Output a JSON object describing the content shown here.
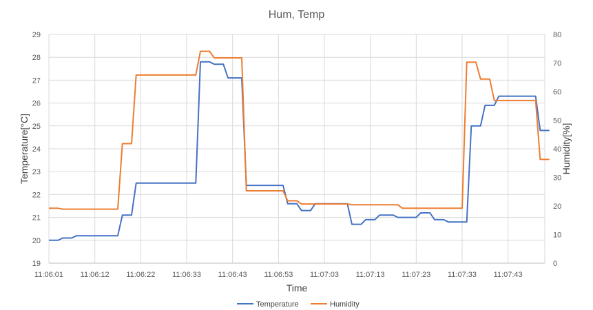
{
  "chart_data": {
    "type": "line",
    "title": "Hum, Temp",
    "xlabel": "Time",
    "ylabel_left": "Temperature[°C]",
    "ylabel_right": "Humidity[%]",
    "ylim_left": [
      19,
      29
    ],
    "ylim_right": [
      0,
      80
    ],
    "yticks_left": [
      19,
      20,
      21,
      22,
      23,
      24,
      25,
      26,
      27,
      28,
      29
    ],
    "yticks_right": [
      0,
      10,
      20,
      30,
      40,
      50,
      60,
      70,
      80
    ],
    "x_tick_labels": [
      "11:06:01",
      "11:06:12",
      "11:06:22",
      "11:06:33",
      "11:06:43",
      "11:06:53",
      "11:07:03",
      "11:07:13",
      "11:07:23",
      "11:07:33",
      "11:07:43"
    ],
    "x_tick_index": [
      0,
      10,
      20,
      30,
      40,
      50,
      60,
      70,
      80,
      90,
      100
    ],
    "x_count": 109,
    "grid": true,
    "legend_position": "bottom",
    "colors": {
      "temperature": "#4472c4",
      "humidity": "#ed7d31"
    },
    "series": [
      {
        "name": "Temperature",
        "axis": "left",
        "points": [
          [
            0,
            20
          ],
          [
            2,
            20
          ],
          [
            3,
            20.1
          ],
          [
            5,
            20.1
          ],
          [
            6,
            20.2
          ],
          [
            15,
            20.2
          ],
          [
            16,
            21.1
          ],
          [
            18,
            21.1
          ],
          [
            19,
            22.5
          ],
          [
            32,
            22.5
          ],
          [
            33,
            27.8
          ],
          [
            35,
            27.8
          ],
          [
            36,
            27.7
          ],
          [
            38,
            27.7
          ],
          [
            39,
            27.1
          ],
          [
            42,
            27.1
          ],
          [
            43,
            22.4
          ],
          [
            51,
            22.4
          ],
          [
            52,
            21.6
          ],
          [
            54,
            21.6
          ],
          [
            55,
            21.3
          ],
          [
            57,
            21.3
          ],
          [
            58,
            21.6
          ],
          [
            65,
            21.6
          ],
          [
            66,
            20.7
          ],
          [
            68,
            20.7
          ],
          [
            69,
            20.9
          ],
          [
            71,
            20.9
          ],
          [
            72,
            21.1
          ],
          [
            75,
            21.1
          ],
          [
            76,
            21
          ],
          [
            80,
            21
          ],
          [
            81,
            21.2
          ],
          [
            83,
            21.2
          ],
          [
            84,
            20.9
          ],
          [
            86,
            20.9
          ],
          [
            87,
            20.8
          ],
          [
            91,
            20.8
          ],
          [
            92,
            25
          ],
          [
            94,
            25
          ],
          [
            95,
            25.9
          ],
          [
            97,
            25.9
          ],
          [
            98,
            26.3
          ],
          [
            106,
            26.3
          ],
          [
            107,
            24.8
          ],
          [
            109,
            24.8
          ]
        ]
      },
      {
        "name": "Humidity",
        "axis": "right",
        "points": [
          [
            0,
            19.2
          ],
          [
            2,
            19.2
          ],
          [
            3,
            18.9
          ],
          [
            15,
            18.9
          ],
          [
            16,
            41.8
          ],
          [
            18,
            41.8
          ],
          [
            19,
            65.8
          ],
          [
            32,
            65.8
          ],
          [
            33,
            74.1
          ],
          [
            35,
            74.1
          ],
          [
            36,
            71.8
          ],
          [
            42,
            71.8
          ],
          [
            43,
            25.3
          ],
          [
            51,
            25.3
          ],
          [
            52,
            21.8
          ],
          [
            54,
            21.8
          ],
          [
            55,
            20.7
          ],
          [
            65,
            20.7
          ],
          [
            66,
            20.4
          ],
          [
            76,
            20.4
          ],
          [
            77,
            19.2
          ],
          [
            90,
            19.2
          ],
          [
            91,
            70.3
          ],
          [
            93,
            70.3
          ],
          [
            94,
            64.4
          ],
          [
            96,
            64.4
          ],
          [
            97,
            56.9
          ],
          [
            106,
            56.9
          ],
          [
            107,
            36.3
          ],
          [
            109,
            36.3
          ]
        ]
      }
    ]
  }
}
